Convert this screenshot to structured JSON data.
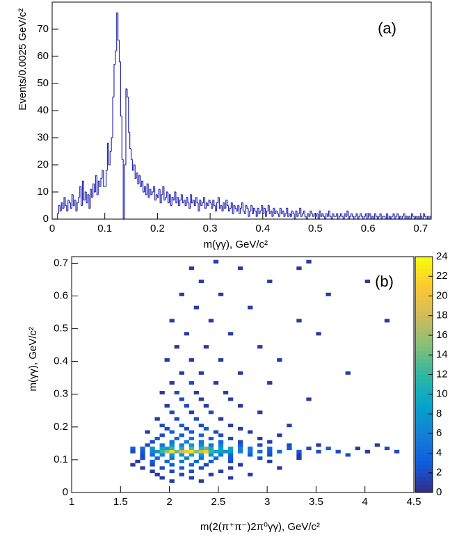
{
  "chart_data": [
    {
      "type": "histogram",
      "title": "(a)",
      "x_label": "m(γγ), GeV/c²",
      "y_label": "Events/0.0025 GeV/c²",
      "color": "#2b2bb0",
      "xlim": [
        0,
        0.72
      ],
      "ylim": [
        0,
        80
      ],
      "xticks": [
        0,
        0.1,
        0.2,
        0.3,
        0.4,
        0.5,
        0.6,
        0.7
      ],
      "yticks": [
        0,
        10,
        20,
        30,
        40,
        50,
        60,
        70
      ],
      "bins": [
        0,
        0.0025,
        0.005,
        0.0075,
        0.01,
        0.0125,
        0.015,
        0.0175,
        0.02,
        0.0225,
        0.025,
        0.0275,
        0.03,
        0.0325,
        0.035,
        0.0375,
        0.04,
        0.0425,
        0.045,
        0.0475,
        0.05,
        0.0525,
        0.055,
        0.0575,
        0.06,
        0.0625,
        0.065,
        0.0675,
        0.07,
        0.0725,
        0.075,
        0.0775,
        0.08,
        0.0825,
        0.085,
        0.0875,
        0.09,
        0.0925,
        0.095,
        0.0975,
        0.1,
        0.1025,
        0.105,
        0.1075,
        0.11,
        0.1125,
        0.115,
        0.1175,
        0.12,
        0.1225,
        0.125,
        0.1275,
        0.13,
        0.1325,
        0.135,
        0.1375,
        0.14,
        0.1425,
        0.145,
        0.1475,
        0.15,
        0.1525,
        0.155,
        0.1575,
        0.16,
        0.1625,
        0.165,
        0.1675,
        0.17,
        0.1725,
        0.175,
        0.1775,
        0.18,
        0.1825,
        0.185,
        0.1875,
        0.19,
        0.1925,
        0.195,
        0.1975,
        0.2,
        0.2025,
        0.205,
        0.2075,
        0.21,
        0.2125,
        0.215,
        0.2175,
        0.22,
        0.2225,
        0.225,
        0.2275,
        0.23,
        0.2325,
        0.235,
        0.2375,
        0.24,
        0.2425,
        0.245,
        0.2475,
        0.25,
        0.2525,
        0.255,
        0.2575,
        0.26,
        0.2625,
        0.265,
        0.2675,
        0.27,
        0.2725,
        0.275,
        0.2775,
        0.28,
        0.2825,
        0.285,
        0.2875,
        0.29,
        0.2925,
        0.295,
        0.2975,
        0.3,
        0.3025,
        0.305,
        0.3075,
        0.31,
        0.3125,
        0.315,
        0.3175,
        0.32,
        0.3225,
        0.325,
        0.3275,
        0.33,
        0.3325,
        0.335,
        0.3375,
        0.34,
        0.3425,
        0.345,
        0.3475,
        0.35,
        0.3525,
        0.355,
        0.3575,
        0.36,
        0.3625,
        0.365,
        0.3675,
        0.37,
        0.3725,
        0.375,
        0.3775,
        0.38,
        0.3825,
        0.385,
        0.3875,
        0.39,
        0.3925,
        0.395,
        0.3975,
        0.4,
        0.4025,
        0.405,
        0.4075,
        0.41,
        0.4125,
        0.415,
        0.4175,
        0.42,
        0.4225,
        0.425,
        0.4275,
        0.43,
        0.4325,
        0.435,
        0.4375,
        0.44,
        0.4425,
        0.445,
        0.4475,
        0.45,
        0.4525,
        0.455,
        0.4575,
        0.46,
        0.4625,
        0.465,
        0.4675,
        0.47,
        0.4725,
        0.475,
        0.4775,
        0.48,
        0.4825,
        0.485,
        0.4875,
        0.49,
        0.4925,
        0.495,
        0.4975,
        0.5,
        0.5025,
        0.505,
        0.5075,
        0.51,
        0.5125,
        0.515,
        0.5175,
        0.52,
        0.5225,
        0.525,
        0.5275,
        0.53,
        0.5325,
        0.535,
        0.5375,
        0.54,
        0.5425,
        0.545,
        0.5475,
        0.55,
        0.5525,
        0.555,
        0.5575,
        0.56,
        0.5625,
        0.565,
        0.5675,
        0.57,
        0.5725,
        0.575,
        0.5775,
        0.58,
        0.5825,
        0.585,
        0.5875,
        0.59,
        0.5925,
        0.595,
        0.5975,
        0.6,
        0.6025,
        0.605,
        0.6075,
        0.61,
        0.6125,
        0.615,
        0.6175,
        0.62,
        0.6225,
        0.625,
        0.6275,
        0.63,
        0.6325,
        0.635,
        0.6375,
        0.64,
        0.6425,
        0.645,
        0.6475,
        0.65,
        0.6525,
        0.655,
        0.6575,
        0.66,
        0.6625,
        0.665,
        0.6675,
        0.67,
        0.6725,
        0.675,
        0.6775,
        0.68,
        0.6825,
        0.685,
        0.6875,
        0.69,
        0.6925,
        0.695,
        0.6975,
        0.7,
        0.7025,
        0.705,
        0.7075,
        0.71,
        0.7125,
        0.715,
        0.7175,
        0.72
      ],
      "values": [
        0,
        0,
        0,
        0,
        2,
        5,
        3,
        6,
        4,
        8,
        5,
        3,
        7,
        6,
        4,
        9,
        5,
        7,
        3,
        6,
        8,
        12,
        5,
        14,
        7,
        10,
        6,
        9,
        4,
        11,
        8,
        13,
        10,
        16,
        9,
        14,
        12,
        15,
        18,
        12,
        12,
        18,
        28,
        20,
        25,
        30,
        45,
        57,
        62,
        76,
        66,
        58,
        38,
        22,
        0,
        20,
        48,
        45,
        32,
        26,
        22,
        18,
        20,
        15,
        17,
        13,
        16,
        12,
        14,
        10,
        12,
        9,
        13,
        8,
        11,
        9,
        10,
        12,
        7,
        9,
        8,
        11,
        6,
        9,
        12,
        7,
        8,
        10,
        6,
        9,
        5,
        8,
        7,
        10,
        6,
        8,
        5,
        7,
        9,
        6,
        7,
        5,
        8,
        6,
        4,
        9,
        6,
        7,
        5,
        8,
        6,
        3,
        7,
        5,
        6,
        8,
        4,
        6,
        5,
        7,
        6,
        4,
        7,
        5,
        3,
        6,
        8,
        4,
        5,
        3,
        6,
        4,
        7,
        5,
        3,
        4,
        6,
        2,
        5,
        4,
        3,
        5,
        2,
        4,
        6,
        3,
        2,
        5,
        4,
        1,
        3,
        5,
        2,
        4,
        3,
        1,
        4,
        2,
        3,
        5,
        2,
        4,
        1,
        3,
        5,
        2,
        3,
        1,
        4,
        2,
        3,
        2,
        1,
        4,
        2,
        3,
        1,
        2,
        4,
        1,
        2,
        1,
        3,
        2,
        0,
        3,
        1,
        2,
        4,
        1,
        2,
        3,
        1,
        0,
        2,
        1,
        3,
        2,
        1,
        2,
        1,
        2,
        0,
        3,
        1,
        2,
        1,
        0,
        2,
        1,
        3,
        1,
        0,
        2,
        1,
        1,
        2,
        0,
        1,
        2,
        1,
        0,
        2,
        1,
        3,
        0,
        1,
        2,
        1,
        0,
        1,
        2,
        0,
        1,
        2,
        1,
        0,
        1,
        2,
        0,
        1,
        2,
        0,
        1,
        0,
        2,
        1,
        0,
        1,
        2,
        0,
        1,
        1,
        0,
        2,
        0,
        1,
        0,
        1,
        2,
        0,
        1,
        2,
        0,
        1,
        0,
        1,
        2,
        0,
        1,
        0,
        1,
        0,
        2,
        1,
        0,
        1,
        0,
        1,
        0,
        1,
        0,
        2,
        1,
        0,
        1,
        0,
        1
      ]
    },
    {
      "type": "heatmap",
      "title": "(b)",
      "x_label": "m(2(π⁺π⁻)2π⁰γγ), GeV/c²",
      "y_label": "m(γγ), GeV/c²",
      "xlim": [
        1,
        4.5
      ],
      "ylim": [
        0,
        0.72
      ],
      "zlim": [
        0,
        24
      ],
      "xticks": [
        1,
        1.5,
        2,
        2.5,
        3,
        3.5,
        4,
        4.5
      ],
      "yticks": [
        0,
        0.1,
        0.2,
        0.3,
        0.4,
        0.5,
        0.6,
        0.7
      ],
      "zticks": [
        0,
        2,
        4,
        6,
        8,
        10,
        12,
        14,
        16,
        18,
        20,
        22,
        24
      ],
      "colormap": [
        "#352a87",
        "#0f5cdd",
        "#1481d6",
        "#06a4ca",
        "#2eb7a4",
        "#87bf77",
        "#d1bb59",
        "#fec832",
        "#f9fb0e"
      ],
      "rows": [
        {
          "y": 0.03,
          "x": [
            2.0,
            2.3
          ],
          "values": [
            1,
            1
          ]
        },
        {
          "y": 0.04,
          "x": [
            1.9,
            2.2,
            2.6
          ],
          "values": [
            1,
            1,
            1
          ]
        },
        {
          "y": 0.05,
          "x": [
            1.85,
            2.1,
            2.4,
            2.8
          ],
          "values": [
            1,
            2,
            1,
            1
          ]
        },
        {
          "y": 0.06,
          "x": [
            1.8,
            2.0,
            2.2,
            2.5
          ],
          "values": [
            1,
            2,
            2,
            1
          ]
        },
        {
          "y": 0.07,
          "x": [
            1.7,
            1.9,
            2.1,
            2.3,
            2.6,
            3.1
          ],
          "values": [
            1,
            2,
            3,
            2,
            1,
            1
          ]
        },
        {
          "y": 0.08,
          "x": [
            1.6,
            1.8,
            2.0,
            2.2,
            2.35,
            2.7
          ],
          "values": [
            1,
            2,
            3,
            4,
            2,
            1
          ]
        },
        {
          "y": 0.09,
          "x": [
            1.65,
            1.8,
            1.95,
            2.1,
            2.25,
            2.4,
            2.6,
            3.0
          ],
          "values": [
            1,
            3,
            4,
            5,
            4,
            3,
            2,
            1
          ]
        },
        {
          "y": 0.1,
          "x": [
            1.7,
            1.85,
            2.0,
            2.15,
            2.3,
            2.45,
            2.6,
            2.9,
            3.3
          ],
          "values": [
            2,
            4,
            5,
            6,
            5,
            4,
            3,
            2,
            1
          ]
        },
        {
          "y": 0.11,
          "x": [
            1.7,
            1.8,
            1.9,
            2.0,
            2.1,
            2.2,
            2.3,
            2.4,
            2.5,
            2.6,
            2.8,
            3.0,
            3.3,
            3.8
          ],
          "values": [
            2,
            4,
            6,
            8,
            7,
            9,
            8,
            7,
            5,
            4,
            3,
            2,
            1,
            2
          ]
        },
        {
          "y": 0.12,
          "x": [
            1.6,
            1.7,
            1.8,
            1.85,
            1.9,
            1.95,
            2.0,
            2.05,
            2.1,
            2.15,
            2.2,
            2.25,
            2.3,
            2.35,
            2.4,
            2.45,
            2.5,
            2.55,
            2.6,
            2.7,
            2.8,
            2.9,
            3.0,
            3.1,
            3.3,
            3.5,
            3.7,
            4.0,
            4.3
          ],
          "values": [
            2,
            3,
            6,
            8,
            12,
            16,
            22,
            14,
            18,
            20,
            22,
            15,
            18,
            21,
            12,
            10,
            9,
            7,
            8,
            6,
            5,
            4,
            3,
            4,
            3,
            2,
            2,
            1,
            2
          ]
        },
        {
          "y": 0.13,
          "x": [
            1.6,
            1.7,
            1.8,
            1.9,
            1.95,
            2.0,
            2.1,
            2.2,
            2.3,
            2.35,
            2.4,
            2.5,
            2.6,
            2.7,
            2.8,
            3.0,
            3.2,
            3.4,
            3.6,
            3.9,
            4.2
          ],
          "values": [
            3,
            4,
            7,
            10,
            9,
            12,
            11,
            13,
            12,
            14,
            10,
            8,
            9,
            6,
            5,
            4,
            3,
            2,
            3,
            1,
            2
          ]
        },
        {
          "y": 0.14,
          "x": [
            1.75,
            1.9,
            2.0,
            2.1,
            2.2,
            2.3,
            2.4,
            2.5,
            2.7,
            2.9,
            3.2,
            3.5,
            4.1
          ],
          "values": [
            2,
            5,
            7,
            6,
            8,
            7,
            5,
            6,
            3,
            2,
            2,
            1,
            1
          ]
        },
        {
          "y": 0.15,
          "x": [
            1.8,
            2.0,
            2.15,
            2.3,
            2.5,
            2.7,
            3.0
          ],
          "values": [
            2,
            5,
            6,
            5,
            4,
            2,
            1
          ]
        },
        {
          "y": 0.16,
          "x": [
            1.85,
            2.05,
            2.2,
            2.4,
            2.6,
            2.9
          ],
          "values": [
            3,
            4,
            5,
            3,
            2,
            1
          ]
        },
        {
          "y": 0.17,
          "x": [
            1.9,
            2.1,
            2.3,
            2.5,
            3.1
          ],
          "values": [
            2,
            3,
            4,
            2,
            1
          ]
        },
        {
          "y": 0.18,
          "x": [
            1.75,
            2.0,
            2.2,
            2.45,
            2.8
          ],
          "values": [
            1,
            3,
            3,
            2,
            1
          ]
        },
        {
          "y": 0.19,
          "x": [
            1.95,
            2.15,
            2.35,
            2.7
          ],
          "values": [
            2,
            2,
            3,
            1
          ]
        },
        {
          "y": 0.2,
          "x": [
            1.9,
            2.1,
            2.3,
            2.6,
            3.2
          ],
          "values": [
            2,
            3,
            2,
            1,
            1
          ]
        },
        {
          "y": 0.22,
          "x": [
            1.85,
            2.05,
            2.25,
            2.5
          ],
          "values": [
            1,
            2,
            2,
            1
          ]
        },
        {
          "y": 0.24,
          "x": [
            2.0,
            2.2,
            2.4,
            2.9
          ],
          "values": [
            2,
            1,
            2,
            1
          ]
        },
        {
          "y": 0.26,
          "x": [
            1.95,
            2.15,
            2.35,
            2.7
          ],
          "values": [
            1,
            2,
            1,
            1
          ]
        },
        {
          "y": 0.28,
          "x": [
            2.1,
            2.3,
            2.6,
            3.4
          ],
          "values": [
            2,
            1,
            1,
            1
          ]
        },
        {
          "y": 0.3,
          "x": [
            1.9,
            2.05,
            2.25,
            2.55
          ],
          "values": [
            1,
            2,
            1,
            1
          ]
        },
        {
          "y": 0.33,
          "x": [
            2.0,
            2.2,
            2.45,
            3.0
          ],
          "values": [
            1,
            2,
            1,
            1
          ]
        },
        {
          "y": 0.36,
          "x": [
            2.1,
            2.3,
            2.7,
            3.8
          ],
          "values": [
            1,
            1,
            1,
            1
          ]
        },
        {
          "y": 0.4,
          "x": [
            1.95,
            2.2,
            2.5,
            3.1
          ],
          "values": [
            1,
            1,
            1,
            1
          ]
        },
        {
          "y": 0.44,
          "x": [
            2.05,
            2.35,
            2.9
          ],
          "values": [
            1,
            1,
            1
          ]
        },
        {
          "y": 0.48,
          "x": [
            2.15,
            2.6,
            3.5
          ],
          "values": [
            1,
            1,
            1
          ]
        },
        {
          "y": 0.52,
          "x": [
            2.0,
            2.4,
            3.3,
            4.2
          ],
          "values": [
            1,
            1,
            1,
            1
          ]
        },
        {
          "y": 0.56,
          "x": [
            2.25,
            2.8
          ],
          "values": [
            1,
            1
          ]
        },
        {
          "y": 0.6,
          "x": [
            2.1,
            2.5,
            3.6
          ],
          "values": [
            1,
            1,
            1
          ]
        },
        {
          "y": 0.64,
          "x": [
            2.3,
            3.0,
            4.0
          ],
          "values": [
            1,
            1,
            1
          ]
        },
        {
          "y": 0.68,
          "x": [
            2.2,
            2.7,
            3.3
          ],
          "values": [
            1,
            1,
            1
          ]
        },
        {
          "y": 0.7,
          "x": [
            2.45,
            3.4
          ],
          "values": [
            1,
            1
          ]
        }
      ]
    }
  ]
}
